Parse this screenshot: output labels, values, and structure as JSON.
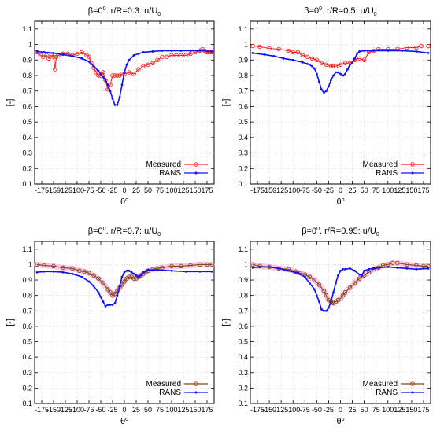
{
  "chart_data": [
    {
      "type": "line",
      "title": {
        "text": "β=0",
        "sup": "0",
        "mid": ". r/R=0.3: u/U",
        "sub": "0"
      },
      "ylabel": "[-]",
      "xlabel": {
        "text": "θ",
        "sup": "o"
      },
      "xlim": [
        -190,
        190
      ],
      "ylim": [
        0.1,
        1.15
      ],
      "xticks": [
        "-175",
        "-150",
        "-125",
        "-100",
        "-75",
        "-50",
        "-25",
        "0",
        "25",
        "50",
        "75",
        "100",
        "125",
        "150",
        "175"
      ],
      "yticks": [
        "0.1",
        "0.2",
        "0.3",
        "0.4",
        "0.5",
        "0.6",
        "0.7",
        "0.8",
        "0.9",
        "1",
        "1.1"
      ],
      "legend_position": "bottom-right",
      "series": [
        {
          "name": "Measured",
          "color": "#ff2020",
          "marker": "circle",
          "x": [
            -185,
            -178,
            -172,
            -165,
            -160,
            -155,
            -150,
            -147,
            -144,
            -140,
            -130,
            -120,
            -110,
            -100,
            -90,
            -80,
            -75,
            -70,
            -65,
            -60,
            -55,
            -50,
            -45,
            -40,
            -35,
            -30,
            -25,
            -20,
            -15,
            -10,
            -5,
            0,
            10,
            20,
            30,
            40,
            50,
            60,
            70,
            80,
            90,
            100,
            110,
            120,
            130,
            140,
            150,
            160,
            165,
            170,
            175,
            180,
            185
          ],
          "y": [
            0.95,
            0.93,
            0.92,
            0.93,
            0.91,
            0.93,
            0.92,
            0.84,
            0.92,
            0.93,
            0.94,
            0.94,
            0.93,
            0.94,
            0.95,
            0.93,
            0.92,
            0.88,
            0.85,
            0.82,
            0.8,
            0.8,
            0.82,
            0.77,
            0.71,
            0.74,
            0.8,
            0.8,
            0.8,
            0.8,
            0.81,
            0.81,
            0.82,
            0.81,
            0.84,
            0.86,
            0.87,
            0.88,
            0.9,
            0.92,
            0.92,
            0.93,
            0.93,
            0.93,
            0.93,
            0.94,
            0.95,
            0.96,
            0.97,
            0.96,
            0.95,
            0.95,
            0.95
          ]
        },
        {
          "name": "RANS",
          "color": "#1010ff",
          "marker": "dot",
          "x": [
            -185,
            -170,
            -150,
            -130,
            -110,
            -90,
            -75,
            -65,
            -55,
            -50,
            -45,
            -40,
            -35,
            -30,
            -25,
            -20,
            -15,
            -10,
            -5,
            0,
            5,
            10,
            20,
            30,
            40,
            60,
            80,
            100,
            120,
            140,
            160,
            185
          ],
          "y": [
            0.955,
            0.95,
            0.945,
            0.935,
            0.925,
            0.91,
            0.89,
            0.86,
            0.83,
            0.81,
            0.79,
            0.77,
            0.74,
            0.7,
            0.65,
            0.61,
            0.61,
            0.66,
            0.74,
            0.82,
            0.87,
            0.9,
            0.93,
            0.94,
            0.95,
            0.955,
            0.96,
            0.96,
            0.96,
            0.96,
            0.96,
            0.955
          ]
        }
      ]
    },
    {
      "type": "line",
      "title": {
        "text": "β=0",
        "sup": "0",
        "mid": ". r/R=0.5: u/U",
        "sub": "0"
      },
      "ylabel": "[-]",
      "xlabel": {
        "text": "θ",
        "sup": "o"
      },
      "xlim": [
        -190,
        190
      ],
      "ylim": [
        0.1,
        1.15
      ],
      "xticks": [
        "-175",
        "-150",
        "-125",
        "-100",
        "-75",
        "-50",
        "-25",
        "0",
        "25",
        "50",
        "75",
        "100",
        "125",
        "150",
        "175"
      ],
      "yticks": [
        "0.1",
        "0.2",
        "0.3",
        "0.4",
        "0.5",
        "0.6",
        "0.7",
        "0.8",
        "0.9",
        "1",
        "1.1"
      ],
      "legend_position": "bottom-right",
      "series": [
        {
          "name": "Measured",
          "color": "#ff2020",
          "marker": "circle",
          "x": [
            -185,
            -170,
            -150,
            -130,
            -110,
            -100,
            -90,
            -80,
            -70,
            -60,
            -50,
            -40,
            -30,
            -20,
            -15,
            -10,
            0,
            10,
            20,
            30,
            40,
            50,
            60,
            70,
            80,
            100,
            120,
            140,
            160,
            170,
            185
          ],
          "y": [
            0.99,
            0.985,
            0.975,
            0.97,
            0.96,
            0.95,
            0.95,
            0.93,
            0.92,
            0.91,
            0.9,
            0.88,
            0.87,
            0.86,
            0.86,
            0.86,
            0.87,
            0.88,
            0.88,
            0.9,
            0.91,
            0.9,
            0.95,
            0.96,
            0.97,
            0.97,
            0.97,
            0.98,
            0.98,
            0.99,
            0.99
          ]
        },
        {
          "name": "RANS",
          "color": "#1010ff",
          "marker": "dot",
          "x": [
            -185,
            -160,
            -140,
            -120,
            -100,
            -80,
            -70,
            -60,
            -55,
            -50,
            -45,
            -40,
            -35,
            -30,
            -25,
            -20,
            -15,
            -10,
            -5,
            0,
            5,
            10,
            15,
            20,
            25,
            30,
            35,
            40,
            50,
            70,
            100,
            130,
            160,
            185
          ],
          "y": [
            0.945,
            0.935,
            0.925,
            0.91,
            0.9,
            0.885,
            0.875,
            0.86,
            0.845,
            0.81,
            0.76,
            0.71,
            0.69,
            0.7,
            0.73,
            0.77,
            0.8,
            0.82,
            0.82,
            0.81,
            0.8,
            0.81,
            0.84,
            0.87,
            0.88,
            0.91,
            0.94,
            0.955,
            0.96,
            0.96,
            0.96,
            0.96,
            0.955,
            0.945
          ]
        }
      ]
    },
    {
      "type": "line",
      "title": {
        "text": "β=0",
        "sup": "0",
        "mid": ". r/R=0.7: u/U",
        "sub": "0"
      },
      "ylabel": "[-]",
      "xlabel": {
        "text": "θ",
        "sup": "o"
      },
      "xlim": [
        -190,
        190
      ],
      "ylim": [
        0.1,
        1.15
      ],
      "xticks": [
        "-175",
        "-150",
        "-125",
        "-100",
        "-75",
        "-50",
        "-25",
        "0",
        "25",
        "50",
        "75",
        "100",
        "125",
        "150",
        "175"
      ],
      "yticks": [
        "0.1",
        "0.2",
        "0.3",
        "0.4",
        "0.5",
        "0.6",
        "0.7",
        "0.8",
        "0.9",
        "1",
        "1.1"
      ],
      "legend_position": "bottom-right",
      "series": [
        {
          "name": "Measured",
          "color": "#8b4513",
          "marker": "circle",
          "x": [
            -185,
            -170,
            -150,
            -130,
            -110,
            -95,
            -85,
            -75,
            -65,
            -55,
            -45,
            -35,
            -30,
            -25,
            -20,
            -15,
            -10,
            -5,
            0,
            5,
            10,
            15,
            20,
            25,
            30,
            35,
            40,
            45,
            50,
            60,
            70,
            80,
            100,
            120,
            140,
            160,
            175,
            185
          ],
          "y": [
            1.0,
            0.995,
            0.99,
            0.98,
            0.975,
            0.96,
            0.955,
            0.945,
            0.93,
            0.91,
            0.88,
            0.84,
            0.82,
            0.8,
            0.81,
            0.83,
            0.85,
            0.87,
            0.89,
            0.91,
            0.92,
            0.92,
            0.91,
            0.91,
            0.92,
            0.93,
            0.94,
            0.95,
            0.96,
            0.97,
            0.975,
            0.98,
            0.99,
            0.99,
            0.995,
            1.0,
            1.0,
            1.0
          ]
        },
        {
          "name": "RANS",
          "color": "#1010ff",
          "marker": "dot",
          "x": [
            -185,
            -170,
            -150,
            -130,
            -110,
            -90,
            -75,
            -65,
            -55,
            -50,
            -45,
            -40,
            -35,
            -30,
            -25,
            -20,
            -15,
            -10,
            -5,
            0,
            5,
            10,
            15,
            20,
            25,
            30,
            35,
            40,
            50,
            70,
            100,
            130,
            160,
            185
          ],
          "y": [
            0.95,
            0.955,
            0.955,
            0.95,
            0.94,
            0.92,
            0.89,
            0.86,
            0.82,
            0.79,
            0.76,
            0.73,
            0.74,
            0.74,
            0.74,
            0.75,
            0.8,
            0.86,
            0.92,
            0.95,
            0.96,
            0.96,
            0.95,
            0.94,
            0.93,
            0.92,
            0.93,
            0.95,
            0.965,
            0.965,
            0.96,
            0.955,
            0.955,
            0.955
          ]
        }
      ]
    },
    {
      "type": "line",
      "title": {
        "text": "β=0",
        "sup": "0",
        "mid": ". r/R=0.95: u/U",
        "sub": "0"
      },
      "ylabel": "[-]",
      "xlabel": {
        "text": "θ",
        "sup": "o"
      },
      "xlim": [
        -190,
        190
      ],
      "ylim": [
        0.1,
        1.15
      ],
      "xticks": [
        "-175",
        "-150",
        "-125",
        "-100",
        "-75",
        "-50",
        "-25",
        "0",
        "25",
        "50",
        "75",
        "100",
        "125",
        "150",
        "175"
      ],
      "yticks": [
        "0.1",
        "0.2",
        "0.3",
        "0.4",
        "0.5",
        "0.6",
        "0.7",
        "0.8",
        "0.9",
        "1",
        "1.1"
      ],
      "legend_position": "bottom-right",
      "series": [
        {
          "name": "Measured",
          "color": "#8b4513",
          "marker": "circle",
          "x": [
            -185,
            -170,
            -150,
            -130,
            -110,
            -95,
            -85,
            -75,
            -65,
            -55,
            -45,
            -35,
            -30,
            -25,
            -20,
            -15,
            -10,
            -5,
            0,
            5,
            10,
            20,
            30,
            40,
            50,
            60,
            70,
            80,
            90,
            100,
            110,
            120,
            140,
            160,
            175,
            185
          ],
          "y": [
            1.0,
            0.99,
            0.985,
            0.975,
            0.97,
            0.955,
            0.945,
            0.935,
            0.92,
            0.9,
            0.87,
            0.83,
            0.8,
            0.77,
            0.76,
            0.75,
            0.76,
            0.77,
            0.78,
            0.8,
            0.82,
            0.85,
            0.88,
            0.91,
            0.93,
            0.95,
            0.97,
            0.98,
            0.995,
            1.0,
            1.01,
            1.01,
            1.0,
            0.995,
            0.99,
            0.99
          ]
        },
        {
          "name": "RANS",
          "color": "#1010ff",
          "marker": "dot",
          "x": [
            -185,
            -170,
            -150,
            -130,
            -110,
            -90,
            -75,
            -65,
            -55,
            -50,
            -45,
            -40,
            -35,
            -30,
            -25,
            -20,
            -15,
            -10,
            -5,
            0,
            5,
            10,
            20,
            30,
            40,
            45,
            50,
            60,
            70,
            80,
            100,
            120,
            140,
            160,
            185
          ],
          "y": [
            0.98,
            0.985,
            0.985,
            0.975,
            0.96,
            0.945,
            0.92,
            0.88,
            0.84,
            0.8,
            0.76,
            0.71,
            0.7,
            0.7,
            0.72,
            0.76,
            0.82,
            0.88,
            0.93,
            0.96,
            0.97,
            0.97,
            0.975,
            0.96,
            0.935,
            0.93,
            0.96,
            0.97,
            0.975,
            0.98,
            0.985,
            0.98,
            0.975,
            0.97,
            0.975
          ]
        }
      ]
    }
  ]
}
